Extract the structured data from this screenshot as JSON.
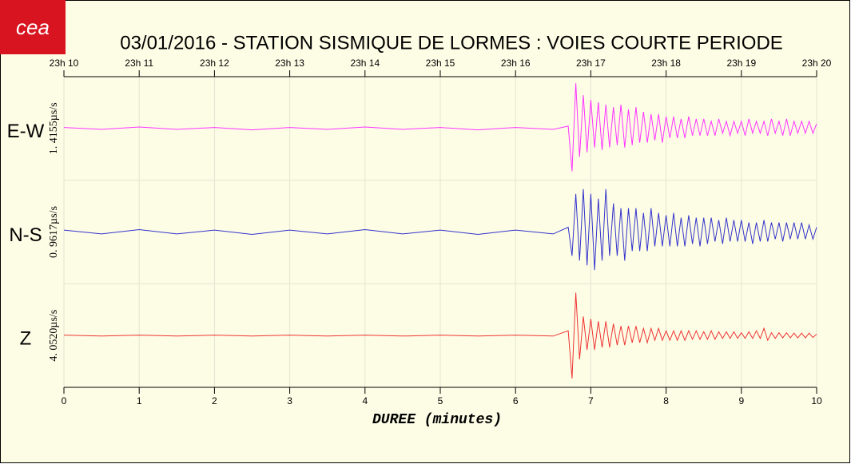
{
  "chart_data": {
    "type": "line",
    "title": "03/01/2016  -  STATION SISMIQUE DE LORMES : VOIES COURTE PERIODE",
    "logo": "cea",
    "x_label": "DUREE (minutes)",
    "xlim": [
      0,
      10
    ],
    "xticks": [
      0,
      1,
      2,
      3,
      4,
      5,
      6,
      7,
      8,
      9,
      10
    ],
    "top_ticks": [
      {
        "value": 0,
        "label": "23h 10"
      },
      {
        "value": 1,
        "label": "23h 11"
      },
      {
        "value": 2,
        "label": "23h 12"
      },
      {
        "value": 3,
        "label": "23h 13"
      },
      {
        "value": 4,
        "label": "23h 14"
      },
      {
        "value": 5,
        "label": "23h 15"
      },
      {
        "value": 6,
        "label": "23h 16"
      },
      {
        "value": 7,
        "label": "23h 17"
      },
      {
        "value": 8,
        "label": "23h 18"
      },
      {
        "value": 9,
        "label": "23h 19"
      },
      {
        "value": 10,
        "label": "23h 20"
      }
    ],
    "ylim": [
      -1,
      1
    ],
    "grid": true,
    "x": [
      0,
      0.5,
      1,
      1.5,
      2,
      2.5,
      3,
      3.5,
      4,
      4.5,
      5,
      5.5,
      6,
      6.5,
      6.7,
      6.75,
      6.8,
      6.85,
      6.9,
      6.95,
      7,
      7.05,
      7.1,
      7.15,
      7.2,
      7.25,
      7.3,
      7.35,
      7.4,
      7.45,
      7.5,
      7.55,
      7.6,
      7.65,
      7.7,
      7.75,
      7.8,
      7.85,
      7.9,
      7.95,
      8,
      8.05,
      8.1,
      8.15,
      8.2,
      8.25,
      8.3,
      8.35,
      8.4,
      8.45,
      8.5,
      8.55,
      8.6,
      8.65,
      8.7,
      8.75,
      8.8,
      8.85,
      8.9,
      8.95,
      9,
      9.05,
      9.1,
      9.15,
      9.2,
      9.25,
      9.3,
      9.35,
      9.4,
      9.45,
      9.5,
      9.55,
      9.6,
      9.65,
      9.7,
      9.75,
      9.8,
      9.85,
      9.9,
      9.95,
      10
    ],
    "series": [
      {
        "name": "E-W",
        "scale_label": "1. 4155µs/s",
        "color": "#ff33ff",
        "values": [
          0.02,
          -0.02,
          0.03,
          -0.02,
          0.02,
          -0.03,
          0.02,
          -0.02,
          0.03,
          -0.02,
          0.02,
          -0.03,
          0.02,
          -0.02,
          0.05,
          -0.9,
          0.95,
          -0.6,
          0.7,
          -0.5,
          0.6,
          -0.4,
          0.55,
          -0.45,
          0.5,
          -0.4,
          0.45,
          -0.35,
          0.5,
          -0.4,
          0.4,
          -0.35,
          0.45,
          -0.3,
          0.35,
          -0.3,
          0.3,
          -0.25,
          0.3,
          -0.3,
          0.25,
          -0.2,
          0.25,
          -0.2,
          0.2,
          -0.2,
          0.25,
          -0.15,
          0.2,
          -0.15,
          0.2,
          -0.15,
          0.15,
          -0.15,
          0.2,
          -0.1,
          0.15,
          -0.15,
          0.15,
          -0.1,
          0.15,
          -0.15,
          0.2,
          -0.1,
          0.15,
          -0.1,
          0.15,
          -0.15,
          0.2,
          -0.1,
          0.15,
          -0.15,
          0.2,
          -0.15,
          0.15,
          -0.1,
          0.15,
          -0.1,
          0.15,
          -0.1,
          0.1
        ]
      },
      {
        "name": "N-S",
        "scale_label": "0. 9617µs/s",
        "color": "#3333cc",
        "values": [
          0.04,
          -0.04,
          0.05,
          -0.04,
          0.04,
          -0.05,
          0.04,
          -0.04,
          0.05,
          -0.04,
          0.04,
          -0.05,
          0.04,
          -0.04,
          0.1,
          -0.5,
          0.8,
          -0.6,
          0.9,
          -0.7,
          0.8,
          -0.8,
          0.7,
          -0.6,
          0.9,
          -0.5,
          0.6,
          -0.5,
          0.5,
          -0.6,
          0.5,
          -0.4,
          0.5,
          -0.4,
          0.4,
          -0.4,
          0.5,
          -0.3,
          0.4,
          -0.3,
          0.35,
          -0.3,
          0.4,
          -0.3,
          0.3,
          -0.3,
          0.35,
          -0.25,
          0.3,
          -0.3,
          0.3,
          -0.25,
          0.3,
          -0.2,
          0.25,
          -0.25,
          0.3,
          -0.2,
          0.25,
          -0.2,
          0.25,
          -0.2,
          0.2,
          -0.25,
          0.2,
          -0.2,
          0.25,
          -0.2,
          0.2,
          -0.15,
          0.2,
          -0.2,
          0.2,
          -0.15,
          0.2,
          -0.15,
          0.2,
          -0.15,
          0.15,
          -0.15,
          0.1
        ]
      },
      {
        "name": "Z",
        "scale_label": "4. 0520µs/s",
        "color": "#ee3333",
        "values": [
          0.01,
          -0.01,
          0.01,
          -0.01,
          0.01,
          -0.01,
          0.01,
          -0.01,
          0.01,
          -0.01,
          0.01,
          -0.01,
          0.01,
          -0.01,
          0.1,
          -0.9,
          0.9,
          -0.5,
          0.4,
          -0.3,
          0.35,
          -0.3,
          0.3,
          -0.25,
          0.3,
          -0.25,
          0.25,
          -0.2,
          0.2,
          -0.2,
          0.2,
          -0.15,
          0.2,
          -0.15,
          0.15,
          -0.15,
          0.15,
          -0.1,
          0.15,
          -0.1,
          0.1,
          -0.1,
          0.1,
          -0.1,
          0.1,
          -0.1,
          0.1,
          -0.08,
          0.1,
          -0.08,
          0.08,
          -0.08,
          0.1,
          -0.08,
          0.08,
          -0.06,
          0.08,
          -0.06,
          0.08,
          -0.06,
          0.06,
          -0.06,
          0.08,
          -0.06,
          0.1,
          -0.06,
          0.15,
          -0.1,
          0.06,
          -0.06,
          0.06,
          -0.05,
          0.06,
          -0.05,
          0.05,
          -0.05,
          0.05,
          -0.05,
          0.05,
          -0.04,
          0.03
        ]
      }
    ]
  }
}
